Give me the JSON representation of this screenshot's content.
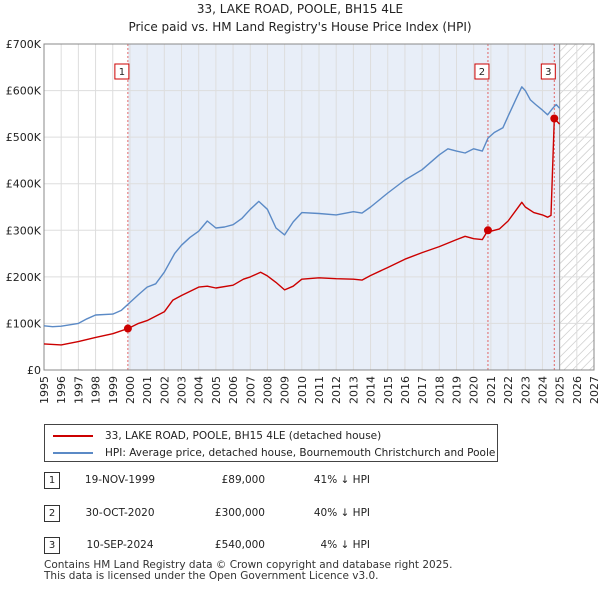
{
  "chart_data": {
    "type": "line",
    "title": "33, LAKE ROAD, POOLE, BH15 4LE",
    "subtitle": "Price paid vs. HM Land Registry's House Price Index (HPI)",
    "xlim": [
      1995,
      2027
    ],
    "ylim": [
      0,
      700000
    ],
    "x_ticks": [
      "1995",
      "1996",
      "1997",
      "1998",
      "1999",
      "2000",
      "2001",
      "2002",
      "2003",
      "2004",
      "2005",
      "2006",
      "2007",
      "2008",
      "2009",
      "2010",
      "2011",
      "2012",
      "2013",
      "2014",
      "2015",
      "2016",
      "2017",
      "2018",
      "2019",
      "2020",
      "2021",
      "2022",
      "2023",
      "2024",
      "2025",
      "2026",
      "2027"
    ],
    "y_ticks": [
      {
        "value": 0,
        "label": "£0"
      },
      {
        "value": 100000,
        "label": "£100K"
      },
      {
        "value": 200000,
        "label": "£200K"
      },
      {
        "value": 300000,
        "label": "£300K"
      },
      {
        "value": 400000,
        "label": "£400K"
      },
      {
        "value": 500000,
        "label": "£500K"
      },
      {
        "value": 600000,
        "label": "£600K"
      },
      {
        "value": 700000,
        "label": "£700K"
      }
    ],
    "grid": true,
    "forecast_start": 2025.0,
    "series": [
      {
        "name": "33, LAKE ROAD, POOLE, BH15 4LE (detached house)",
        "color": "#cc0000",
        "points": [
          [
            1995.0,
            56000
          ],
          [
            1996.0,
            54000
          ],
          [
            1997.0,
            61000
          ],
          [
            1998.0,
            70000
          ],
          [
            1999.0,
            78000
          ],
          [
            1999.88,
            89000
          ],
          [
            2000.5,
            100000
          ],
          [
            2001.0,
            106000
          ],
          [
            2002.0,
            125000
          ],
          [
            2002.5,
            150000
          ],
          [
            2003.0,
            160000
          ],
          [
            2004.0,
            178000
          ],
          [
            2004.5,
            180000
          ],
          [
            2005.0,
            176000
          ],
          [
            2006.0,
            182000
          ],
          [
            2006.6,
            195000
          ],
          [
            2007.0,
            200000
          ],
          [
            2007.6,
            210000
          ],
          [
            2008.0,
            202000
          ],
          [
            2008.5,
            188000
          ],
          [
            2009.0,
            172000
          ],
          [
            2009.5,
            180000
          ],
          [
            2010.0,
            195000
          ],
          [
            2011.0,
            198000
          ],
          [
            2012.0,
            196000
          ],
          [
            2013.0,
            195000
          ],
          [
            2013.5,
            193000
          ],
          [
            2014.0,
            203000
          ],
          [
            2015.0,
            220000
          ],
          [
            2016.0,
            238000
          ],
          [
            2017.0,
            252000
          ],
          [
            2018.0,
            265000
          ],
          [
            2019.0,
            280000
          ],
          [
            2019.5,
            287000
          ],
          [
            2020.0,
            282000
          ],
          [
            2020.5,
            280000
          ],
          [
            2020.83,
            300000
          ],
          [
            2021.0,
            298000
          ],
          [
            2021.5,
            303000
          ],
          [
            2022.0,
            320000
          ],
          [
            2022.5,
            345000
          ],
          [
            2022.8,
            360000
          ],
          [
            2023.0,
            350000
          ],
          [
            2023.5,
            338000
          ],
          [
            2024.0,
            333000
          ],
          [
            2024.3,
            328000
          ],
          [
            2024.5,
            332000
          ],
          [
            2024.69,
            540000
          ],
          [
            2025.0,
            528000
          ]
        ]
      },
      {
        "name": "HPI: Average price, detached house, Bournemouth Christchurch and Poole",
        "color": "#5b8ac6",
        "points": [
          [
            1995.0,
            95000
          ],
          [
            1995.5,
            93000
          ],
          [
            1996.0,
            94000
          ],
          [
            1997.0,
            100000
          ],
          [
            1997.5,
            110000
          ],
          [
            1998.0,
            118000
          ],
          [
            1999.0,
            120000
          ],
          [
            1999.5,
            128000
          ],
          [
            2000.0,
            145000
          ],
          [
            2000.5,
            162000
          ],
          [
            2001.0,
            178000
          ],
          [
            2001.5,
            185000
          ],
          [
            2002.0,
            210000
          ],
          [
            2002.6,
            250000
          ],
          [
            2003.0,
            268000
          ],
          [
            2003.5,
            285000
          ],
          [
            2004.0,
            298000
          ],
          [
            2004.5,
            320000
          ],
          [
            2005.0,
            305000
          ],
          [
            2005.5,
            307000
          ],
          [
            2006.0,
            312000
          ],
          [
            2006.5,
            325000
          ],
          [
            2007.0,
            345000
          ],
          [
            2007.5,
            362000
          ],
          [
            2008.0,
            345000
          ],
          [
            2008.5,
            305000
          ],
          [
            2009.0,
            290000
          ],
          [
            2009.5,
            318000
          ],
          [
            2010.0,
            338000
          ],
          [
            2011.0,
            336000
          ],
          [
            2012.0,
            333000
          ],
          [
            2013.0,
            340000
          ],
          [
            2013.5,
            337000
          ],
          [
            2014.0,
            350000
          ],
          [
            2015.0,
            380000
          ],
          [
            2016.0,
            408000
          ],
          [
            2017.0,
            430000
          ],
          [
            2018.0,
            462000
          ],
          [
            2018.5,
            475000
          ],
          [
            2019.0,
            470000
          ],
          [
            2019.5,
            466000
          ],
          [
            2020.0,
            475000
          ],
          [
            2020.5,
            470000
          ],
          [
            2020.83,
            498000
          ],
          [
            2021.2,
            510000
          ],
          [
            2021.7,
            520000
          ],
          [
            2022.0,
            545000
          ],
          [
            2022.5,
            585000
          ],
          [
            2022.8,
            608000
          ],
          [
            2023.0,
            600000
          ],
          [
            2023.3,
            580000
          ],
          [
            2023.6,
            570000
          ],
          [
            2024.0,
            558000
          ],
          [
            2024.3,
            548000
          ],
          [
            2024.6,
            562000
          ],
          [
            2024.8,
            570000
          ],
          [
            2025.0,
            562000
          ]
        ]
      }
    ],
    "markers": [
      {
        "label": "1",
        "x": 1999.88,
        "y": 89000
      },
      {
        "label": "2",
        "x": 2020.83,
        "y": 300000
      },
      {
        "label": "3",
        "x": 2024.69,
        "y": 540000
      }
    ]
  },
  "legend": {
    "property_label": "33, LAKE ROAD, POOLE, BH15 4LE (detached house)",
    "hpi_label": "HPI: Average price, detached house, Bournemouth Christchurch and Poole"
  },
  "sales": [
    {
      "num": "1",
      "date": "19-NOV-1999",
      "price": "£89,000",
      "hpi": "41% ↓ HPI"
    },
    {
      "num": "2",
      "date": "30-OCT-2020",
      "price": "£300,000",
      "hpi": "40% ↓ HPI"
    },
    {
      "num": "3",
      "date": "10-SEP-2024",
      "price": "£540,000",
      "hpi": "4% ↓ HPI"
    }
  ],
  "footer": {
    "line1": "Contains HM Land Registry data © Crown copyright and database right 2025.",
    "line2": "This data is licensed under the Open Government Licence v3.0."
  }
}
